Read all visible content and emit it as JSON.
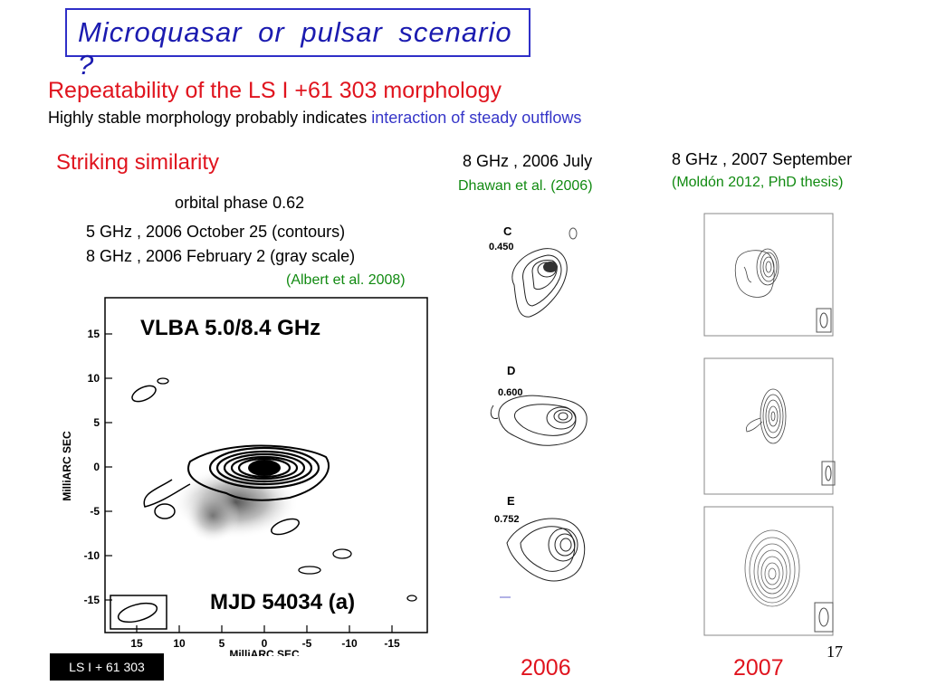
{
  "title": "Microquasar  or  pulsar  scenario  ?",
  "subtitle": "Repeatability of the LS I +61 303 morphology",
  "description": {
    "prefix": "Highly stable morphology probably indicates ",
    "highlight": "interaction of steady outflows"
  },
  "left_panel": {
    "heading": "Striking similarity",
    "phase": "orbital phase 0.62",
    "line1": "5 GHz , 2006 October 25 (contours)",
    "line2": "8 GHz , 2006 February 2 (gray scale)",
    "citation": "(Albert et al. 2008)",
    "plot": {
      "title": "VLBA 5.0/8.4 GHz",
      "label": "MJD 54034   (a)",
      "ylabel": "MilliARC SEC",
      "xlabel": "MilliARC SEC",
      "yticks": [
        "15",
        "10",
        "5",
        "0",
        "-5",
        "-10",
        "-15"
      ],
      "xticks": [
        "15",
        "10",
        "5",
        "0",
        "-5",
        "-10",
        "-15"
      ]
    }
  },
  "middle_panel": {
    "heading": "8 GHz , 2006 July",
    "citation": "Dhawan et al. (2006)",
    "images": [
      {
        "letter": "C",
        "phase": "0.450"
      },
      {
        "letter": "D",
        "phase": "0.600"
      },
      {
        "letter": "E",
        "phase": "0.752"
      }
    ],
    "year": "2006"
  },
  "right_panel": {
    "heading": "8 GHz , 2007 September",
    "citation": "(Moldón 2012, PhD thesis)",
    "year": "2007"
  },
  "footer": {
    "source": "LS I + 61 303",
    "page": "17"
  },
  "colors": {
    "title": "#1b1bb0",
    "red": "#e0141e",
    "green": "#118a11",
    "blue": "#3535c8"
  }
}
